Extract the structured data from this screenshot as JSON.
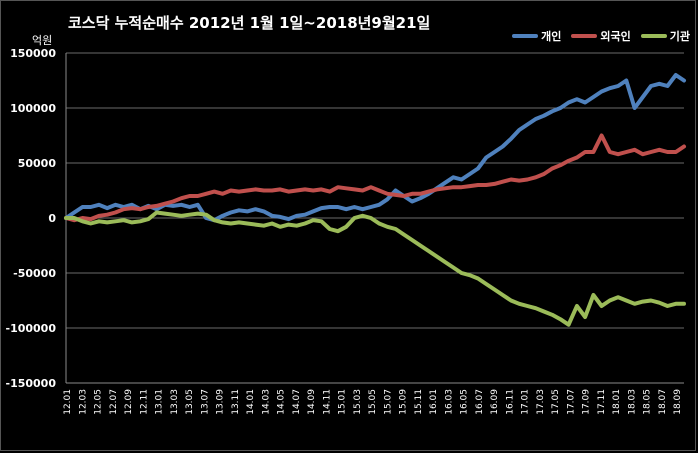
{
  "chart_data": {
    "type": "line",
    "title": "코스닥 누적순매수 2012년 1월 1일~2018년9월21일",
    "ylabel": "억원",
    "ylim": [
      -150000,
      150000
    ],
    "yticks": [
      150000,
      100000,
      50000,
      0,
      -50000,
      -100000,
      -150000
    ],
    "x_start": "12.01",
    "x_end": "18.09",
    "grid": true,
    "legend_position": "top-right",
    "series": [
      {
        "name": "개인",
        "color": "#4f81bd",
        "values": [
          0,
          5000,
          10000,
          10000,
          12000,
          9000,
          12000,
          10000,
          12000,
          8000,
          11000,
          8000,
          12000,
          11000,
          12000,
          10000,
          12000,
          0,
          -2000,
          2000,
          5000,
          7000,
          6000,
          8000,
          6000,
          2000,
          1000,
          -1000,
          2000,
          3000,
          6000,
          9000,
          10000,
          10000,
          8000,
          10000,
          8000,
          10000,
          12000,
          17000,
          25000,
          20000,
          15000,
          18000,
          22000,
          27000,
          32000,
          37000,
          35000,
          40000,
          45000,
          55000,
          60000,
          65000,
          72000,
          80000,
          85000,
          90000,
          93000,
          97000,
          100000,
          105000,
          108000,
          105000,
          110000,
          115000,
          118000,
          120000,
          125000,
          100000,
          110000,
          120000,
          122000,
          120000,
          130000,
          125000
        ]
      },
      {
        "name": "외국인",
        "color": "#c0504d",
        "values": [
          0,
          -2000,
          0,
          -1000,
          2000,
          3000,
          5000,
          8000,
          9000,
          8000,
          10000,
          11000,
          13000,
          15000,
          18000,
          20000,
          20000,
          22000,
          24000,
          22000,
          25000,
          24000,
          25000,
          26000,
          25000,
          25000,
          26000,
          24000,
          25000,
          26000,
          25000,
          26000,
          24000,
          28000,
          27000,
          26000,
          25000,
          28000,
          25000,
          22000,
          21000,
          20000,
          22000,
          22000,
          24000,
          26000,
          27000,
          28000,
          28000,
          29000,
          30000,
          30000,
          31000,
          33000,
          35000,
          34000,
          35000,
          37000,
          40000,
          45000,
          48000,
          52000,
          55000,
          60000,
          60000,
          75000,
          60000,
          58000,
          60000,
          62000,
          58000,
          60000,
          62000,
          60000,
          60000,
          65000
        ]
      },
      {
        "name": "기관",
        "color": "#9bbb59",
        "values": [
          0,
          0,
          -3000,
          -5000,
          -3000,
          -4000,
          -3000,
          -2000,
          -4000,
          -3000,
          -1000,
          5000,
          4000,
          3000,
          2000,
          3000,
          4000,
          3000,
          -2000,
          -4000,
          -5000,
          -4000,
          -5000,
          -6000,
          -7000,
          -5000,
          -8000,
          -6000,
          -7000,
          -5000,
          -2000,
          -3000,
          -10000,
          -12000,
          -8000,
          0,
          2000,
          0,
          -5000,
          -8000,
          -10000,
          -15000,
          -20000,
          -25000,
          -30000,
          -35000,
          -40000,
          -45000,
          -50000,
          -52000,
          -55000,
          -60000,
          -65000,
          -70000,
          -75000,
          -78000,
          -80000,
          -82000,
          -85000,
          -88000,
          -92000,
          -97000,
          -80000,
          -90000,
          -70000,
          -80000,
          -75000,
          -72000,
          -75000,
          -78000,
          -76000,
          -75000,
          -77000,
          -80000,
          -78000,
          -78000
        ]
      }
    ]
  },
  "x_labels": [
    "12.01",
    "12.03",
    "12.05",
    "12.07",
    "12.09",
    "12.11",
    "13.01",
    "13.03",
    "13.05",
    "13.07",
    "13.09",
    "13.11",
    "14.01",
    "14.03",
    "14.05",
    "14.07",
    "14.09",
    "14.11",
    "15.01",
    "15.03",
    "15.05",
    "15.07",
    "15.09",
    "15.11",
    "16.01",
    "16.03",
    "16.05",
    "16.07",
    "16.09",
    "16.11",
    "17.01",
    "17.03",
    "17.05",
    "17.07",
    "17.09",
    "17.11",
    "18.01",
    "18.03",
    "18.05",
    "18.07",
    "18.09"
  ]
}
